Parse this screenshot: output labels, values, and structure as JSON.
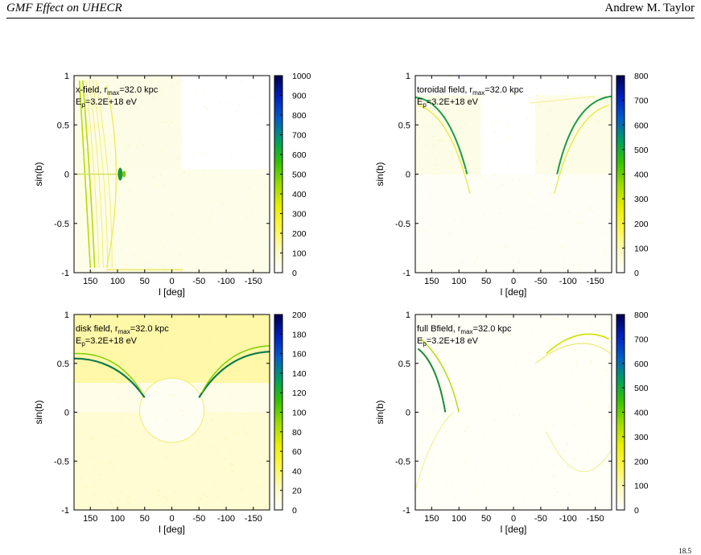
{
  "header": {
    "title": "GMF Effect on UHECR",
    "author": "Andrew M. Taylor"
  },
  "footer_note": "18.5",
  "colors": {
    "colormap": [
      "#ffffff",
      "#fffac0",
      "#fff64a",
      "#e9ee00",
      "#9ddc00",
      "#36c300",
      "#009f5e",
      "#005ec8",
      "#0020c0",
      "#000050"
    ],
    "frame": "#000000",
    "sky_tint": "#fdfce6"
  },
  "chart_data": [
    {
      "type": "heatmap",
      "panel_label": "x-field, r",
      "panel_label_sub": "max",
      "panel_label_tail": "=32.0 kpc",
      "energy_label": "E",
      "energy_label_sub": "p",
      "energy_label_tail": "=3.2E+18 eV",
      "xlabel": "l [deg]",
      "ylabel": "sin(b)",
      "xlim": [
        180,
        -180
      ],
      "ylim": [
        -1,
        1
      ],
      "x_ticks": [
        "150",
        "100",
        "50",
        "0",
        "-50",
        "-100",
        "-150"
      ],
      "y_ticks": [
        "1",
        "0.5",
        "0",
        "-0.5",
        "-1"
      ],
      "colorbar_ticks": [
        "1000",
        "900",
        "800",
        "700",
        "600",
        "500",
        "400",
        "300",
        "200",
        "100",
        "0"
      ],
      "colorbar_range": [
        0,
        1000
      ]
    },
    {
      "type": "heatmap",
      "panel_label": "toroidal field, r",
      "panel_label_sub": "max",
      "panel_label_tail": "=32.0 kpc",
      "energy_label": "E",
      "energy_label_sub": "p",
      "energy_label_tail": "=3.2E+18 eV",
      "xlabel": "l [deg]",
      "ylabel": "sin(b)",
      "xlim": [
        180,
        -180
      ],
      "ylim": [
        -1,
        1
      ],
      "x_ticks": [
        "150",
        "100",
        "50",
        "0",
        "-50",
        "-100",
        "-150"
      ],
      "y_ticks": [
        "1",
        "0.5",
        "0",
        "-0.5",
        "-1"
      ],
      "colorbar_ticks": [
        "800",
        "700",
        "600",
        "500",
        "400",
        "300",
        "200",
        "100",
        "0"
      ],
      "colorbar_range": [
        0,
        800
      ]
    },
    {
      "type": "heatmap",
      "panel_label": "disk field, r",
      "panel_label_sub": "max",
      "panel_label_tail": "=32.0 kpc",
      "energy_label": "E",
      "energy_label_sub": "p",
      "energy_label_tail": "=3.2E+18 eV",
      "xlabel": "l [deg]",
      "ylabel": "sin(b)",
      "xlim": [
        180,
        -180
      ],
      "ylim": [
        -1,
        1
      ],
      "x_ticks": [
        "150",
        "100",
        "50",
        "0",
        "-50",
        "-100",
        "-150"
      ],
      "y_ticks": [
        "1",
        "0.5",
        "0",
        "-0.5",
        "-1"
      ],
      "colorbar_ticks": [
        "200",
        "180",
        "160",
        "140",
        "120",
        "100",
        "80",
        "60",
        "40",
        "20",
        "0"
      ],
      "colorbar_range": [
        0,
        200
      ]
    },
    {
      "type": "heatmap",
      "panel_label": "full Bfield, r",
      "panel_label_sub": "max",
      "panel_label_tail": "=32.0 kpc",
      "energy_label": "E",
      "energy_label_sub": "p",
      "energy_label_tail": "=3.2E+18 eV",
      "xlabel": "l [deg]",
      "ylabel": "sin(b)",
      "xlim": [
        180,
        -180
      ],
      "ylim": [
        -1,
        1
      ],
      "x_ticks": [
        "150",
        "100",
        "50",
        "0",
        "-50",
        "-100",
        "-150"
      ],
      "y_ticks": [
        "1",
        "0.5",
        "0",
        "-0.5",
        "-1"
      ],
      "colorbar_ticks": [
        "800",
        "700",
        "600",
        "500",
        "400",
        "300",
        "200",
        "100",
        "0"
      ],
      "colorbar_range": [
        0,
        800
      ]
    }
  ]
}
